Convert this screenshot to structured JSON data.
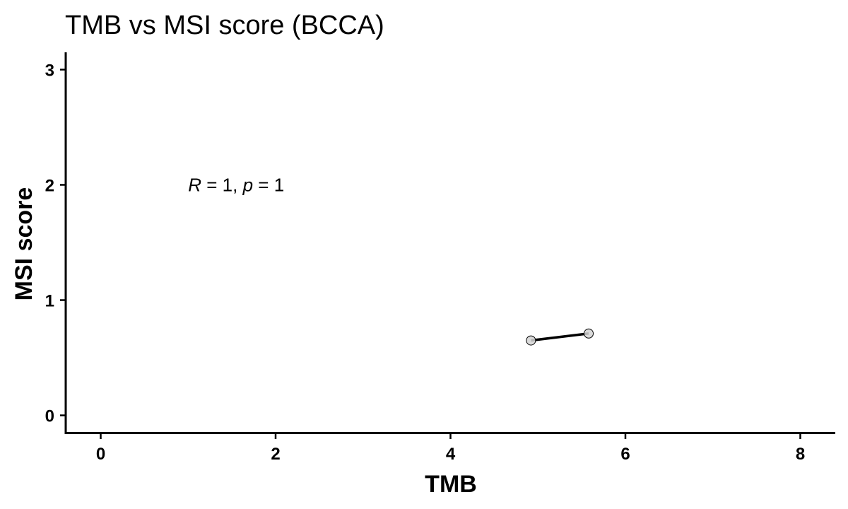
{
  "chart_data": {
    "type": "scatter",
    "title": "TMB vs MSI score (BCCA)",
    "xlabel": "TMB",
    "ylabel": "MSI score",
    "xlim": [
      -0.4,
      8.4
    ],
    "ylim": [
      -0.15,
      3.15
    ],
    "xticks": [
      0,
      2,
      4,
      6,
      8
    ],
    "yticks": [
      0,
      1,
      2,
      3
    ],
    "points": [
      {
        "x": 4.92,
        "y": 0.65
      },
      {
        "x": 5.58,
        "y": 0.71
      }
    ],
    "fit_line": {
      "x": [
        4.92,
        5.58
      ],
      "y": [
        0.65,
        0.71
      ]
    },
    "annotation": {
      "R_label": "R",
      "R_value": "1",
      "p_label": "p",
      "p_value": "1",
      "x": 1.0,
      "y": 2.0
    },
    "point_color": "#d3d3d3",
    "point_stroke": "#000000",
    "line_color": "#000000",
    "grid": false,
    "legend": "none"
  }
}
